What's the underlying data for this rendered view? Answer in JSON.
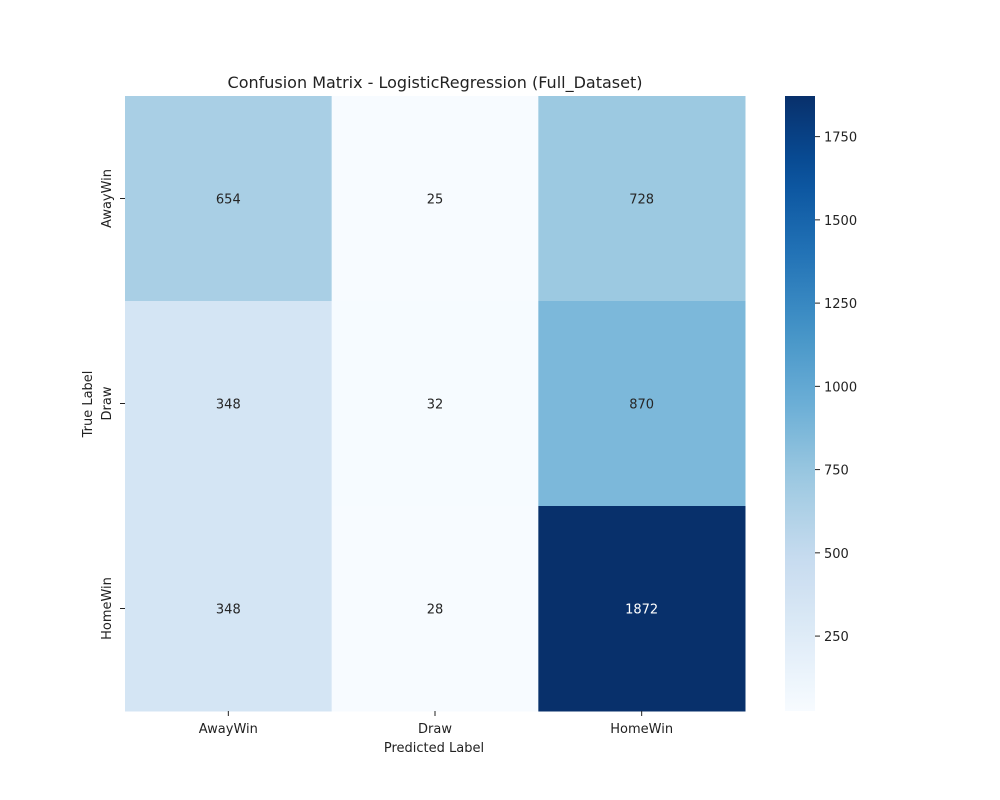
{
  "chart_data": {
    "type": "heatmap",
    "title": "Confusion Matrix - LogisticRegression (Full_Dataset)",
    "xlabel": "Predicted Label",
    "ylabel": "True Label",
    "x_categories": [
      "AwayWin",
      "Draw",
      "HomeWin"
    ],
    "y_categories": [
      "AwayWin",
      "Draw",
      "HomeWin"
    ],
    "values": [
      [
        654,
        25,
        728
      ],
      [
        348,
        32,
        870
      ],
      [
        348,
        28,
        1872
      ]
    ],
    "colormap": "Blues",
    "colorbar": {
      "min": 25,
      "max": 1872,
      "ticks": [
        250,
        500,
        750,
        1000,
        1250,
        1500,
        1750
      ]
    }
  }
}
